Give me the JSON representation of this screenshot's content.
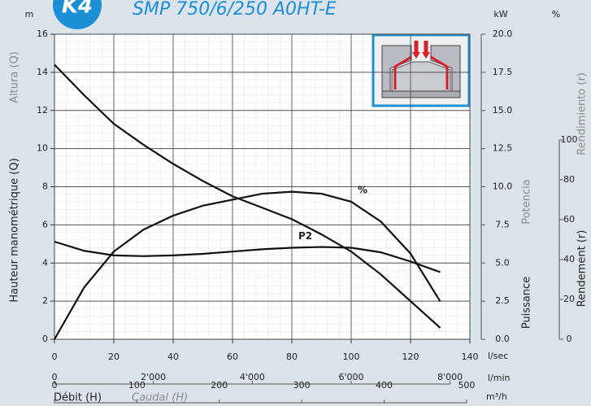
{
  "chart_data": {
    "type": "line",
    "badge": "K4",
    "title": "SMP 750/6/250 A0HT-E",
    "x": [
      0,
      10,
      20,
      30,
      40,
      50,
      60,
      70,
      80,
      90,
      100,
      110,
      120,
      130
    ],
    "xlim": [
      0,
      140
    ],
    "xticks": [
      0,
      20,
      40,
      60,
      80,
      100,
      120,
      140
    ],
    "xunit": "l/sec",
    "x2lim": [
      0,
      8400
    ],
    "x2ticks": [
      0,
      {
        "value": 2000,
        "label": "2'000"
      },
      {
        "value": 4000,
        "label": "4'000"
      },
      {
        "value": 6000,
        "label": "6'000"
      },
      {
        "value": 8000,
        "label": "8'000"
      }
    ],
    "x2unit": "l/min",
    "x3lim": [
      0,
      504
    ],
    "x3ticks": [
      0,
      100,
      200,
      300,
      400,
      500
    ],
    "x3unit": "m³/h",
    "xlabel": "Débit (H)",
    "xlabel_alt": "Caudal (H)",
    "ylim": [
      0,
      16
    ],
    "yticks": [
      0,
      2,
      4,
      6,
      8,
      10,
      12,
      14,
      16
    ],
    "yunit": "m",
    "ylabel": "Hauteur manométrique (Q)",
    "ylabel_alt": "Altura (Q)",
    "y2lim": [
      0,
      20
    ],
    "y2ticks": [
      {
        "value": 0,
        "label": "0.0"
      },
      2.5,
      {
        "value": 5,
        "label": "5.0"
      },
      7.5,
      {
        "value": 10,
        "label": "10.0"
      },
      12.5,
      {
        "value": 15,
        "label": "15.0"
      },
      17.5,
      {
        "value": 20,
        "label": "20.0"
      }
    ],
    "y2unit": "kW",
    "y2label": "Puissance",
    "y2label_alt": "Potencia",
    "y3lim": [
      0,
      153
    ],
    "y3ticks": [
      0,
      20,
      40,
      60,
      80,
      100
    ],
    "y3unit": "%",
    "y3label": "Rendement (r)",
    "y3label_alt": "Rendimiento (r)",
    "grid": true,
    "series": [
      {
        "color": "#111111",
        "axis": "y",
        "values": [
          14.4,
          12.8,
          11.3,
          10.2,
          9.2,
          8.3,
          7.5,
          6.9,
          6.3,
          5.5,
          4.6,
          3.4,
          2.0,
          0.6
        ]
      },
      {
        "name": "%",
        "color": "#111111",
        "axis": "y3",
        "values": [
          0,
          26,
          44,
          55,
          62,
          67,
          70,
          73,
          74,
          73,
          69,
          59,
          43,
          19
        ]
      },
      {
        "name": "P2",
        "color": "#111111",
        "axis": "y2",
        "values": [
          6.4,
          5.8,
          5.5,
          5.45,
          5.5,
          5.6,
          5.75,
          5.9,
          6.0,
          6.05,
          6.0,
          5.7,
          5.1,
          4.4
        ]
      }
    ]
  }
}
